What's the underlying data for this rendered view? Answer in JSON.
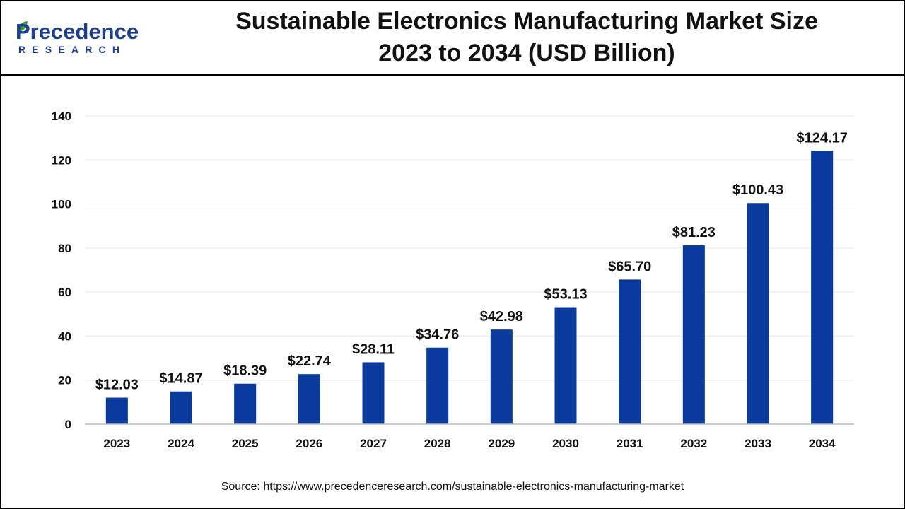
{
  "header": {
    "logo_word": "Precedence",
    "logo_sub": "RESEARCH",
    "title_line1": "Sustainable Electronics Manufacturing Market Size",
    "title_line2": "2023 to 2034 (USD Billion)"
  },
  "colors": {
    "bar": "#0a3a9c",
    "brand": "#1e3f8f",
    "grid": "#e6e6e6"
  },
  "chart_data": {
    "type": "bar",
    "title": "Sustainable Electronics Manufacturing Market Size 2023 to 2034 (USD Billion)",
    "categories": [
      "2023",
      "2024",
      "2025",
      "2026",
      "2027",
      "2028",
      "2029",
      "2030",
      "2031",
      "2032",
      "2033",
      "2034"
    ],
    "values": [
      12.03,
      14.87,
      18.39,
      22.74,
      28.11,
      34.76,
      42.98,
      53.13,
      65.7,
      81.23,
      100.43,
      124.17
    ],
    "data_labels": [
      "$12.03",
      "$14.87",
      "$18.39",
      "$22.74",
      "$28.11",
      "$34.76",
      "$42.98",
      "$53.13",
      "$65.70",
      "$81.23",
      "$100.43",
      "$124.17"
    ],
    "ylim": [
      0,
      140
    ],
    "yticks": [
      0,
      20,
      40,
      60,
      80,
      100,
      120,
      140
    ],
    "xlabel": "",
    "ylabel": "",
    "grid": true,
    "legend": "none"
  },
  "footer": {
    "source": "Source: https://www.precedenceresearch.com/sustainable-electronics-manufacturing-market"
  }
}
